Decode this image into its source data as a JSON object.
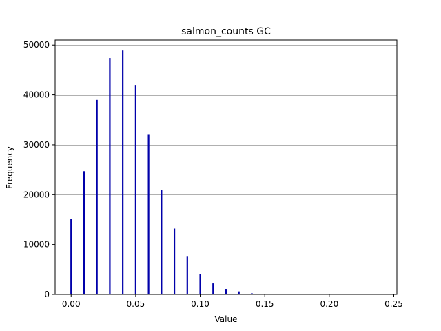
{
  "chart_data": {
    "type": "bar",
    "title": "salmon_counts GC",
    "xlabel": "Value",
    "ylabel": "Frequency",
    "xlim": [
      -0.0124,
      0.2524
    ],
    "ylim": [
      0,
      51000
    ],
    "x_ticks": [
      0.0,
      0.05,
      0.1,
      0.15,
      0.2,
      0.25
    ],
    "x_tick_labels": [
      "0.00",
      "0.05",
      "0.10",
      "0.15",
      "0.20",
      "0.25"
    ],
    "y_ticks": [
      0,
      10000,
      20000,
      30000,
      40000,
      50000
    ],
    "y_tick_labels": [
      "0",
      "10000",
      "20000",
      "30000",
      "40000",
      "50000"
    ],
    "grid": "horizontal",
    "bar_color": "#0000aa",
    "x": [
      0.0,
      0.01,
      0.02,
      0.03,
      0.04,
      0.05,
      0.06,
      0.07,
      0.08,
      0.09,
      0.1,
      0.11,
      0.12,
      0.13,
      0.14,
      0.15
    ],
    "values": [
      15100,
      24700,
      39000,
      47400,
      48900,
      42000,
      32000,
      21000,
      13200,
      7700,
      4100,
      2200,
      1100,
      600,
      250,
      100
    ]
  }
}
